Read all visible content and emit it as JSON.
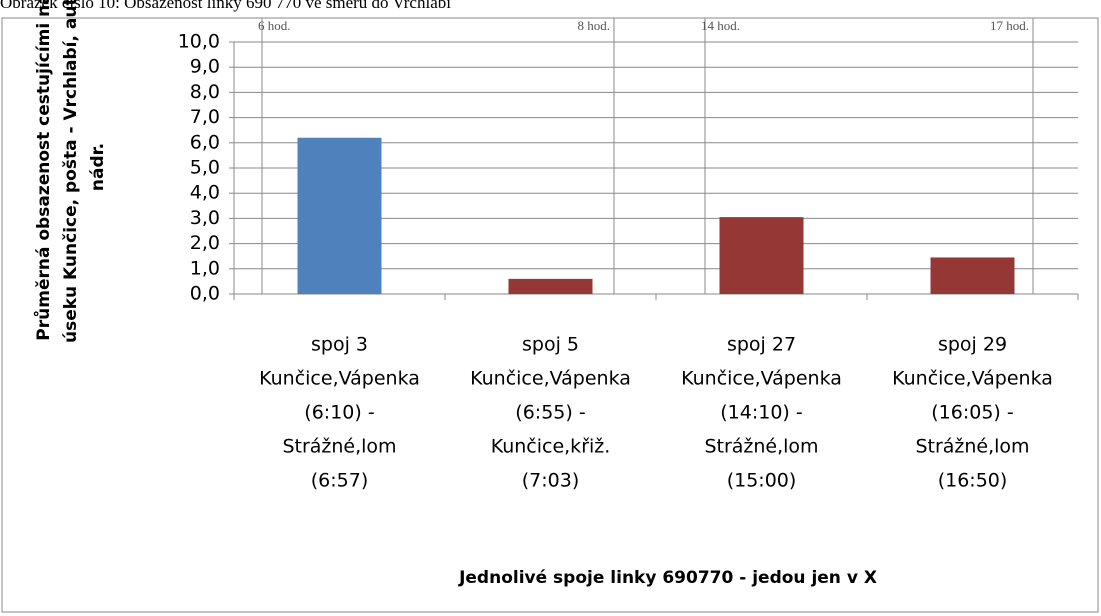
{
  "chart_data": {
    "type": "bar",
    "caption": "Obrázek číslo 10: Obsazenost linky 690 770 ve směru do Vrchlabí",
    "y_label": [
      "Průměrná obsazenost cestujícími na",
      "úseku Kunčice, pošta - Vrchlabí, aut.",
      "nádr."
    ],
    "x_label": "Jednolivé spoje linky 690770 - jedou jen v X",
    "categories": [
      [
        "spoj 3",
        "Kunčice,Vápenka",
        "(6:10) -",
        "Strážné,lom",
        "(6:57)"
      ],
      [
        "spoj 5",
        "Kunčice,Vápenka",
        "(6:55) -",
        "Kunčice,křiž.",
        "(7:03)"
      ],
      [
        "spoj 27",
        "Kunčice,Vápenka",
        "(14:10) -",
        "Strážné,lom",
        "(15:00)"
      ],
      [
        "spoj 29",
        "Kunčice,Vápenka",
        "(16:05) -",
        "Strážné,lom",
        "(16:50)"
      ]
    ],
    "values": [
      6.2,
      0.6,
      3.05,
      1.45
    ],
    "colors": [
      "#4f81bd",
      "#953735",
      "#953735",
      "#953735"
    ],
    "annotations": [
      "6 hod.",
      "8 hod.",
      "14 hod.",
      "17 hod."
    ],
    "ylim": [
      0,
      10
    ],
    "yticks": [
      {
        "value": 0,
        "label": "0,0"
      },
      {
        "value": 1,
        "label": "1,0"
      },
      {
        "value": 2,
        "label": "2,0"
      },
      {
        "value": 3,
        "label": "3,0"
      },
      {
        "value": 4,
        "label": "4,0"
      },
      {
        "value": 5,
        "label": "5,0"
      },
      {
        "value": 6,
        "label": "6,0"
      },
      {
        "value": 7,
        "label": "7,0"
      },
      {
        "value": 8,
        "label": "8,0"
      },
      {
        "value": 9,
        "label": "9,0"
      },
      {
        "value": 10,
        "label": "10,0"
      }
    ],
    "grid": true
  }
}
